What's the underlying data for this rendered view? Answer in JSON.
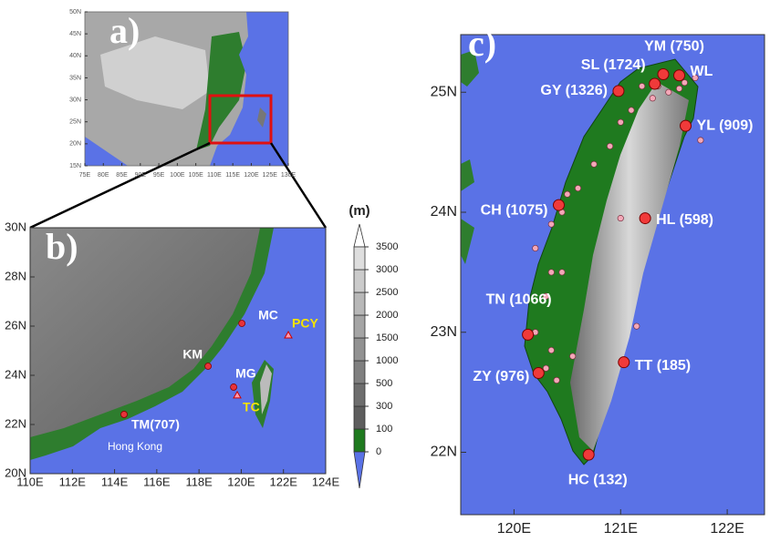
{
  "panel_a": {
    "label": "a)",
    "xlim": [
      75,
      130
    ],
    "ylim": [
      15,
      50
    ],
    "xticks": [
      {
        "value": 75,
        "label": "75E"
      },
      {
        "value": 80,
        "label": "80E"
      },
      {
        "value": 85,
        "label": "85E"
      },
      {
        "value": 90,
        "label": "90E"
      },
      {
        "value": 95,
        "label": "95E"
      },
      {
        "value": 100,
        "label": "100E"
      },
      {
        "value": 105,
        "label": "105E"
      },
      {
        "value": 110,
        "label": "110E"
      },
      {
        "value": 115,
        "label": "115E"
      },
      {
        "value": 120,
        "label": "120E"
      },
      {
        "value": 125,
        "label": "125E"
      },
      {
        "value": 130,
        "label": "130E"
      }
    ],
    "yticks": [
      {
        "value": 15,
        "label": "15N"
      },
      {
        "value": 20,
        "label": "20N"
      },
      {
        "value": 25,
        "label": "25N"
      },
      {
        "value": 30,
        "label": "30N"
      },
      {
        "value": 35,
        "label": "35N"
      },
      {
        "value": 40,
        "label": "40N"
      },
      {
        "value": 45,
        "label": "45N"
      },
      {
        "value": 50,
        "label": "50N"
      }
    ]
  },
  "panel_b": {
    "label": "b)",
    "xlim": [
      110,
      124
    ],
    "ylim": [
      20,
      30
    ],
    "xticks": [
      {
        "value": 110,
        "label": "110E"
      },
      {
        "value": 112,
        "label": "112E"
      },
      {
        "value": 114,
        "label": "114E"
      },
      {
        "value": 116,
        "label": "116E"
      },
      {
        "value": 118,
        "label": "118E"
      },
      {
        "value": 120,
        "label": "120E"
      },
      {
        "value": 122,
        "label": "122E"
      },
      {
        "value": 124,
        "label": "124E"
      }
    ],
    "yticks": [
      {
        "value": 20,
        "label": "20N"
      },
      {
        "value": 22,
        "label": "22N"
      },
      {
        "value": 24,
        "label": "24N"
      },
      {
        "value": 26,
        "label": "26N"
      },
      {
        "value": 28,
        "label": "28N"
      },
      {
        "value": 30,
        "label": "30N"
      }
    ],
    "stations": [
      {
        "name": "MC",
        "lon": 120.03,
        "lat": 26.11,
        "marker": "circle"
      },
      {
        "name": "KM",
        "lon": 118.43,
        "lat": 24.37,
        "marker": "circle"
      },
      {
        "name": "MG",
        "lon": 119.64,
        "lat": 23.52,
        "marker": "circle"
      },
      {
        "name": "TC",
        "lon": 119.81,
        "lat": 23.19,
        "marker": "triangle"
      },
      {
        "name": "PCY",
        "lon": 122.23,
        "lat": 25.63,
        "marker": "triangle"
      },
      {
        "name": "TM(707)",
        "lon": 114.45,
        "lat": 22.41,
        "marker": "circle",
        "place": "Hong Kong"
      }
    ]
  },
  "colorbar": {
    "unit": "(m)",
    "levels": [
      0,
      100,
      300,
      500,
      1000,
      1500,
      2000,
      2500,
      3000,
      3500
    ],
    "colors": [
      "#5a72e6",
      "#1f7a1f",
      "#5e5e5e",
      "#6e6e6e",
      "#808080",
      "#929292",
      "#a5a5a5",
      "#b8b8b8",
      "#cbcbcb",
      "#dedede",
      "#ffffff"
    ]
  },
  "panel_c": {
    "label": "c)",
    "xlim": [
      119.5,
      122.35
    ],
    "ylim": [
      21.48,
      25.48
    ],
    "xticks": [
      {
        "value": 120,
        "label": "120E"
      },
      {
        "value": 121,
        "label": "121E"
      },
      {
        "value": 122,
        "label": "122E"
      }
    ],
    "yticks": [
      {
        "value": 22,
        "label": "22N"
      },
      {
        "value": 23,
        "label": "23N"
      },
      {
        "value": 24,
        "label": "24N"
      },
      {
        "value": 25,
        "label": "25N"
      }
    ],
    "stations": [
      {
        "name": "YM (750)",
        "lon": 121.4,
        "lat": 25.15
      },
      {
        "name": "SL (1724)",
        "lon": 121.32,
        "lat": 25.07
      },
      {
        "name": "WL",
        "lon": 121.55,
        "lat": 25.14
      },
      {
        "name": "GY (1326)",
        "lon": 120.98,
        "lat": 25.01
      },
      {
        "name": "YL (909)",
        "lon": 121.61,
        "lat": 24.72
      },
      {
        "name": "CH (1075)",
        "lon": 120.42,
        "lat": 24.06
      },
      {
        "name": "HL (598)",
        "lon": 121.23,
        "lat": 23.95
      },
      {
        "name": "TN (1066)",
        "lon": 120.13,
        "lat": 22.98
      },
      {
        "name": "TT (185)",
        "lon": 121.03,
        "lat": 22.75
      },
      {
        "name": "ZY (976)",
        "lon": 120.23,
        "lat": 22.66
      },
      {
        "name": "HC (132)",
        "lon": 120.7,
        "lat": 21.98
      }
    ],
    "sites": [
      [
        121.2,
        25.05
      ],
      [
        121.35,
        25.05
      ],
      [
        121.45,
        25.0
      ],
      [
        121.55,
        25.03
      ],
      [
        121.6,
        25.08
      ],
      [
        121.3,
        24.95
      ],
      [
        121.1,
        24.85
      ],
      [
        121.0,
        24.75
      ],
      [
        120.9,
        24.55
      ],
      [
        120.75,
        24.4
      ],
      [
        120.6,
        24.2
      ],
      [
        120.5,
        24.15
      ],
      [
        120.45,
        24.0
      ],
      [
        120.35,
        23.9
      ],
      [
        120.2,
        23.7
      ],
      [
        120.35,
        23.5
      ],
      [
        120.3,
        23.3
      ],
      [
        120.45,
        23.5
      ],
      [
        120.2,
        23.0
      ],
      [
        120.35,
        22.85
      ],
      [
        120.3,
        22.7
      ],
      [
        120.4,
        22.6
      ],
      [
        120.55,
        22.8
      ],
      [
        121.0,
        23.95
      ],
      [
        121.15,
        23.05
      ],
      [
        121.75,
        24.6
      ],
      [
        121.7,
        25.12
      ]
    ]
  }
}
